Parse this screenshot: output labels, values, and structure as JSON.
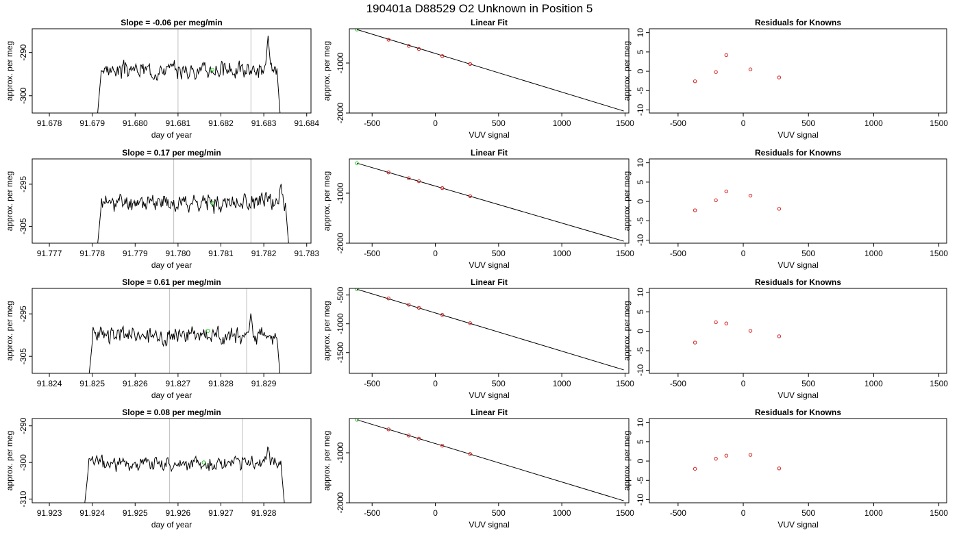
{
  "title": "190401a      D88529   O2 Unknown in Position  5",
  "chart_data": [
    {
      "type": "line",
      "title": "Slope =  -0.06  per meg/min",
      "xlabel": "day of year",
      "ylabel": "approx. per meg",
      "xlim": [
        91.6776,
        91.6841
      ],
      "ylim": [
        -304,
        -284.5
      ],
      "xticks": [
        "91.678",
        "91.679",
        "91.680",
        "91.681",
        "91.682",
        "91.683",
        "91.684"
      ],
      "xtick_values": [
        91.678,
        91.679,
        91.68,
        91.681,
        91.682,
        91.683,
        91.684
      ],
      "yticks": [
        "-290",
        "-300"
      ],
      "ytick_values": [
        -290,
        -300
      ],
      "vlines": [
        91.681,
        91.6827
      ],
      "green_point": {
        "x": 91.6818,
        "y": -294
      },
      "series": {
        "x_start": 91.6791,
        "x_end": 91.6834,
        "base": -294,
        "amp": 1.8,
        "seed": 3,
        "spike": {
          "x": 91.6831,
          "y": -286
        }
      }
    },
    {
      "type": "line",
      "title": "Slope =  0.17  per meg/min",
      "xlabel": "day of year",
      "ylabel": "approx. per meg",
      "xlim": [
        91.7766,
        91.7831
      ],
      "ylim": [
        -309,
        -289
      ],
      "xticks": [
        "91.777",
        "91.778",
        "91.779",
        "91.780",
        "91.781",
        "91.782",
        "91.783"
      ],
      "xtick_values": [
        91.777,
        91.778,
        91.779,
        91.78,
        91.781,
        91.782,
        91.783
      ],
      "yticks": [
        "-295",
        "-305"
      ],
      "ytick_values": [
        -295,
        -305
      ],
      "vlines": [
        91.7799,
        91.7817
      ],
      "green_point": {
        "x": 91.7808,
        "y": -299.5
      },
      "series": {
        "x_start": 91.7781,
        "x_end": 91.7826,
        "base": -299.3,
        "amp": 2.0,
        "seed": 11,
        "spike": {
          "x": 91.7824,
          "y": -294.5
        }
      }
    },
    {
      "type": "line",
      "title": "Slope =  0.61  per meg/min",
      "xlabel": "day of year",
      "ylabel": "approx. per meg",
      "xlim": [
        91.8236,
        91.8301
      ],
      "ylim": [
        -309,
        -289
      ],
      "xticks": [
        "91.824",
        "91.825",
        "91.826",
        "91.827",
        "91.828",
        "91.829"
      ],
      "xtick_values": [
        91.824,
        91.825,
        91.826,
        91.827,
        91.828,
        91.829
      ],
      "yticks": [
        "-295",
        "-305"
      ],
      "ytick_values": [
        -295,
        -305
      ],
      "vlines": [
        91.8268,
        91.8286
      ],
      "green_point": {
        "x": 91.8277,
        "y": -299
      },
      "series": {
        "x_start": 91.8249,
        "x_end": 91.8294,
        "base": -300,
        "amp": 2.0,
        "seed": 23,
        "spike": {
          "x": 91.8287,
          "y": -294.5
        }
      }
    },
    {
      "type": "line",
      "title": "Slope =  0.08  per meg/min",
      "xlabel": "day of year",
      "ylabel": "approx. per meg",
      "xlim": [
        91.9226,
        91.9291
      ],
      "ylim": [
        -311,
        -288
      ],
      "xticks": [
        "91.923",
        "91.924",
        "91.925",
        "91.926",
        "91.927",
        "91.928"
      ],
      "xtick_values": [
        91.923,
        91.924,
        91.925,
        91.926,
        91.927,
        91.928
      ],
      "yticks": [
        "-290",
        "-300",
        "-310"
      ],
      "ytick_values": [
        -290,
        -300,
        -310
      ],
      "vlines": [
        91.9258,
        91.9275
      ],
      "green_point": {
        "x": 91.9266,
        "y": -300
      },
      "series": {
        "x_start": 91.9238,
        "x_end": 91.9285,
        "base": -300.2,
        "amp": 2.0,
        "seed": 37,
        "spike": {
          "x": 91.9281,
          "y": -295
        }
      }
    },
    {
      "type": "scatter",
      "title": "Linear Fit",
      "xlabel": "VUV signal",
      "ylabel": "approx. per meg",
      "xlim": [
        -680,
        1530
      ],
      "ylim": [
        -2000,
        -315
      ],
      "xticks": [
        "-500",
        "0",
        "500",
        "1000",
        "1500"
      ],
      "xtick_values": [
        -500,
        0,
        500,
        1000,
        1500
      ],
      "yticks": [
        "-1000",
        "-2000"
      ],
      "ytick_values": [
        -1000,
        -2000
      ],
      "line": {
        "x": [
          -620,
          1490
        ],
        "y": [
          -330,
          -1960
        ]
      },
      "green_points": [
        {
          "x": -620,
          "y": -330
        }
      ],
      "red_points": [
        {
          "x": -370,
          "y": -533
        },
        {
          "x": -210,
          "y": -657
        },
        {
          "x": -130,
          "y": -720
        },
        {
          "x": 55,
          "y": -860
        },
        {
          "x": 275,
          "y": -1020
        }
      ]
    },
    {
      "type": "scatter",
      "title": "Linear Fit",
      "xlabel": "VUV signal",
      "ylabel": "approx. per meg",
      "xlim": [
        -680,
        1530
      ],
      "ylim": [
        -2000,
        -315
      ],
      "xticks": [
        "-500",
        "0",
        "500",
        "1000",
        "1500"
      ],
      "xtick_values": [
        -500,
        0,
        500,
        1000,
        1500
      ],
      "yticks": [
        "-1000",
        "-2000"
      ],
      "ytick_values": [
        -1000,
        -2000
      ],
      "line": {
        "x": [
          -620,
          1490
        ],
        "y": [
          -400,
          -1960
        ]
      },
      "green_points": [
        {
          "x": -620,
          "y": -400
        }
      ],
      "red_points": [
        {
          "x": -370,
          "y": -585
        },
        {
          "x": -210,
          "y": -702
        },
        {
          "x": -130,
          "y": -762
        },
        {
          "x": 55,
          "y": -898
        },
        {
          "x": 275,
          "y": -1060
        }
      ]
    },
    {
      "type": "scatter",
      "title": "Linear Fit",
      "xlabel": "VUV signal",
      "ylabel": "approx. per meg",
      "xlim": [
        -680,
        1530
      ],
      "ylim": [
        -1860,
        -385
      ],
      "xticks": [
        "-500",
        "0",
        "500",
        "1000",
        "1500"
      ],
      "xtick_values": [
        -500,
        0,
        500,
        1000,
        1500
      ],
      "yticks": [
        "-500",
        "-1000",
        "-1500"
      ],
      "ytick_values": [
        -500,
        -1000,
        -1500
      ],
      "line": {
        "x": [
          -620,
          1490
        ],
        "y": [
          -400,
          -1800
        ]
      },
      "green_points": [
        {
          "x": -620,
          "y": -400
        }
      ],
      "red_points": [
        {
          "x": -370,
          "y": -560
        },
        {
          "x": -210,
          "y": -668
        },
        {
          "x": -130,
          "y": -722
        },
        {
          "x": 55,
          "y": -845
        },
        {
          "x": 275,
          "y": -990
        }
      ]
    },
    {
      "type": "scatter",
      "title": "Linear Fit",
      "xlabel": "VUV signal",
      "ylabel": "approx. per meg",
      "xlim": [
        -680,
        1530
      ],
      "ylim": [
        -2000,
        -315
      ],
      "xticks": [
        "-500",
        "0",
        "500",
        "1000",
        "1500"
      ],
      "xtick_values": [
        -500,
        0,
        500,
        1000,
        1500
      ],
      "yticks": [
        "-1000",
        "-2000"
      ],
      "ytick_values": [
        -1000,
        -2000
      ],
      "line": {
        "x": [
          -620,
          1490
        ],
        "y": [
          -340,
          -1960
        ]
      },
      "green_points": [
        {
          "x": -620,
          "y": -340
        }
      ],
      "red_points": [
        {
          "x": -370,
          "y": -532
        },
        {
          "x": -210,
          "y": -655
        },
        {
          "x": -130,
          "y": -717
        },
        {
          "x": 55,
          "y": -858
        },
        {
          "x": 275,
          "y": -1025
        }
      ]
    },
    {
      "type": "scatter",
      "title": "Residuals for Knowns",
      "xlabel": "VUV signal",
      "ylabel": "approx. per meg",
      "xlim": [
        -720,
        1560
      ],
      "ylim": [
        -10.8,
        11
      ],
      "xticks": [
        "-500",
        "0",
        "500",
        "1000",
        "1500"
      ],
      "xtick_values": [
        -500,
        0,
        500,
        1000,
        1500
      ],
      "yticks": [
        "-10",
        "-5",
        "0",
        "5",
        "10"
      ],
      "ytick_values": [
        -10,
        -5,
        0,
        5,
        10
      ],
      "red_points": [
        {
          "x": -370,
          "y": -2.6
        },
        {
          "x": -210,
          "y": -0.2
        },
        {
          "x": -130,
          "y": 4.2
        },
        {
          "x": 55,
          "y": 0.5
        },
        {
          "x": 275,
          "y": -1.6
        }
      ]
    },
    {
      "type": "scatter",
      "title": "Residuals for Knowns",
      "xlabel": "VUV signal",
      "ylabel": "approx. per meg",
      "xlim": [
        -720,
        1560
      ],
      "ylim": [
        -10.8,
        11
      ],
      "xticks": [
        "-500",
        "0",
        "500",
        "1000",
        "1500"
      ],
      "xtick_values": [
        -500,
        0,
        500,
        1000,
        1500
      ],
      "yticks": [
        "-10",
        "-5",
        "0",
        "5",
        "10"
      ],
      "ytick_values": [
        -10,
        -5,
        0,
        5,
        10
      ],
      "red_points": [
        {
          "x": -370,
          "y": -2.3
        },
        {
          "x": -210,
          "y": 0.3
        },
        {
          "x": -130,
          "y": 2.6
        },
        {
          "x": 55,
          "y": 1.5
        },
        {
          "x": 275,
          "y": -1.9
        }
      ]
    },
    {
      "type": "scatter",
      "title": "Residuals for Knowns",
      "xlabel": "VUV signal",
      "ylabel": "approx. per meg",
      "xlim": [
        -720,
        1560
      ],
      "ylim": [
        -10.8,
        11
      ],
      "xticks": [
        "-500",
        "0",
        "500",
        "1000",
        "1500"
      ],
      "xtick_values": [
        -500,
        0,
        500,
        1000,
        1500
      ],
      "yticks": [
        "-10",
        "-5",
        "0",
        "5",
        "10"
      ],
      "ytick_values": [
        -10,
        -5,
        0,
        5,
        10
      ],
      "red_points": [
        {
          "x": -370,
          "y": -2.9
        },
        {
          "x": -210,
          "y": 2.3
        },
        {
          "x": -130,
          "y": 2.0
        },
        {
          "x": 55,
          "y": 0.1
        },
        {
          "x": 275,
          "y": -1.3
        }
      ]
    },
    {
      "type": "scatter",
      "title": "Residuals for Knowns",
      "xlabel": "VUV signal",
      "ylabel": "approx. per meg",
      "xlim": [
        -720,
        1560
      ],
      "ylim": [
        -10.8,
        11
      ],
      "xticks": [
        "-500",
        "0",
        "500",
        "1000",
        "1500"
      ],
      "xtick_values": [
        -500,
        0,
        500,
        1000,
        1500
      ],
      "yticks": [
        "-10",
        "-5",
        "0",
        "5",
        "10"
      ],
      "ytick_values": [
        -10,
        -5,
        0,
        5,
        10
      ],
      "red_points": [
        {
          "x": -370,
          "y": -2.0
        },
        {
          "x": -210,
          "y": 0.6
        },
        {
          "x": -130,
          "y": 1.4
        },
        {
          "x": 55,
          "y": 1.6
        },
        {
          "x": 275,
          "y": -1.9
        }
      ]
    }
  ]
}
